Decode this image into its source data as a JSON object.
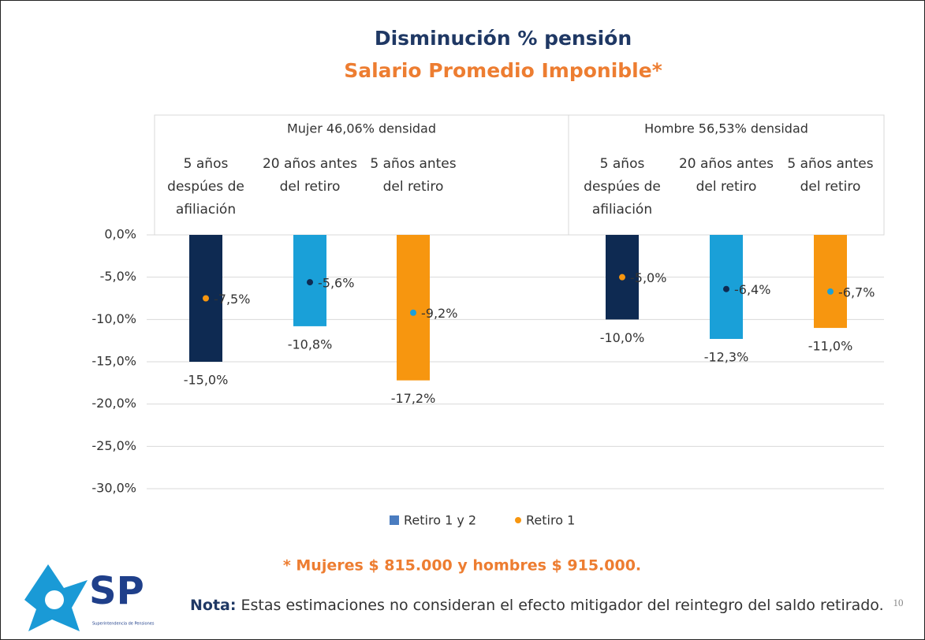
{
  "chart_data": {
    "type": "bar",
    "title": "Disminución % pensión",
    "subtitle": "Salario Promedio Imponible*",
    "groups": [
      {
        "label": "Mujer 46,06% densidad",
        "categories": [
          "5 años despúes de afiliación",
          "20 años antes del retiro",
          "5 años antes del retiro"
        ]
      },
      {
        "label": "Hombre 56,53% densidad",
        "categories": [
          "5 años despúes de afiliación",
          "20 años antes del retiro",
          "5 años antes del retiro"
        ]
      }
    ],
    "series": [
      {
        "name": "Retiro 1 y 2",
        "color": "#4a7cc0",
        "mark_colors": [
          "#0e2a52",
          "#1aa0d8",
          "#f7960f",
          "#0e2a52",
          "#1aa0d8",
          "#f7960f"
        ],
        "values": [
          -15.0,
          -10.8,
          -17.2,
          -10.0,
          -12.3,
          -11.0
        ],
        "value_labels": [
          "-15,0%",
          "-10,8%",
          "-17,2%",
          "-10,0%",
          "-12,3%",
          "-11,0%"
        ]
      },
      {
        "name": "Retiro 1",
        "color": "#f7960f",
        "mark_colors": [
          "#f7960f",
          "#0e2a52",
          "#1aa0d8",
          "#f7960f",
          "#0e2a52",
          "#1aa0d8"
        ],
        "values": [
          -7.5,
          -5.6,
          -9.2,
          -5.0,
          -6.4,
          -6.7
        ],
        "value_labels": [
          "-7,5%",
          "-5,6%",
          "-9,2%",
          "-5,0%",
          "-6,4%",
          "-6,7%"
        ]
      }
    ],
    "ylim": [
      -30,
      0
    ],
    "yticks": [
      {
        "value": 0,
        "label": "0,0%"
      },
      {
        "value": -5,
        "label": "-5,0%"
      },
      {
        "value": -10,
        "label": "-10,0%"
      },
      {
        "value": -15,
        "label": "-15,0%"
      },
      {
        "value": -20,
        "label": "-20,0%"
      },
      {
        "value": -25,
        "label": "-25,0%"
      },
      {
        "value": -30,
        "label": "-30,0%"
      }
    ],
    "grid": true,
    "footnote": "* Mujeres $ 815.000 y hombres $ 915.000."
  },
  "note": {
    "label": "Nota:",
    "text": "Estas estimaciones no consideran el efecto mitigador del reintegro del saldo retirado."
  },
  "logo": {
    "initials": "SP",
    "caption": "Superintendencia de Pensiones"
  },
  "page_number": "10"
}
